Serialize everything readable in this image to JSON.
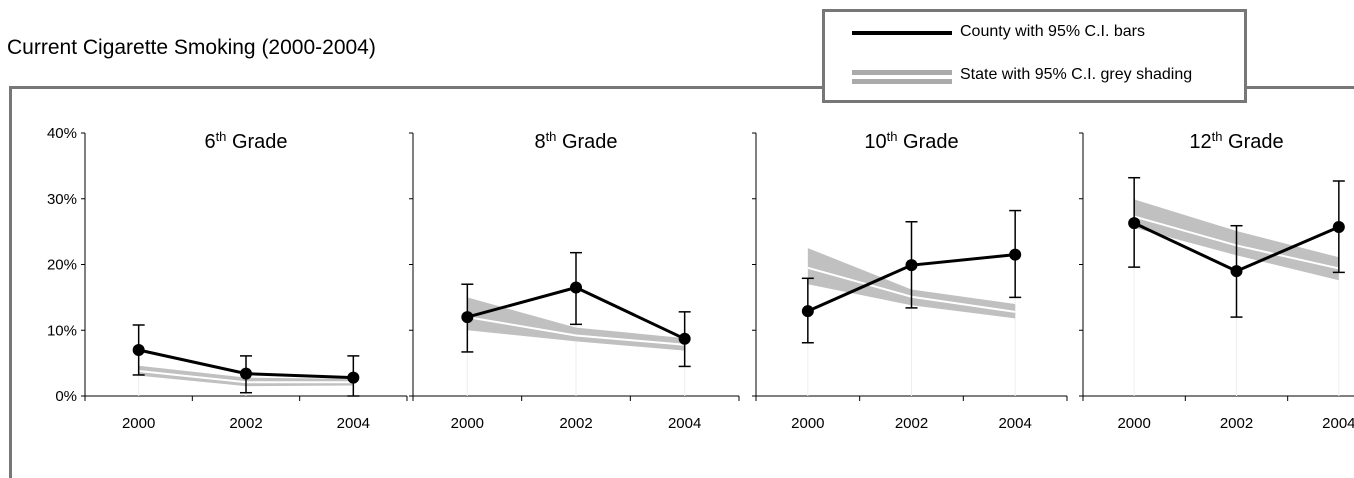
{
  "title": "Current Cigarette Smoking (2000-2004)",
  "legend": {
    "county_label": "County with 95% C.I. bars",
    "state_label": "State with 95% C.I. grey shading"
  },
  "colors": {
    "county": "#000000",
    "state_band": "#c0c0c0",
    "state_line": "#ffffff",
    "frame": "#777777"
  },
  "chart_data": [
    {
      "type": "line",
      "panel_title": {
        "number": "6",
        "suffix": "th",
        "text": " Grade"
      },
      "x": [
        "2000",
        "2002",
        "2004"
      ],
      "ylim": [
        0,
        40
      ],
      "yticks": [
        "0%",
        "10%",
        "20%",
        "30%",
        "40%"
      ],
      "series": [
        {
          "name": "County",
          "values": [
            7.0,
            3.4,
            2.8
          ],
          "ci_low": [
            3.2,
            0.5,
            0.0
          ],
          "ci_high": [
            10.8,
            6.1,
            6.1
          ]
        },
        {
          "name": "State",
          "values": [
            3.8,
            2.1,
            2.1
          ],
          "ci_low": [
            3.1,
            1.5,
            1.6
          ],
          "ci_high": [
            4.6,
            2.8,
            2.6
          ]
        }
      ]
    },
    {
      "type": "line",
      "panel_title": {
        "number": "8",
        "suffix": "th",
        "text": " Grade"
      },
      "x": [
        "2000",
        "2002",
        "2004"
      ],
      "ylim": [
        0,
        40
      ],
      "yticks": [],
      "series": [
        {
          "name": "County",
          "values": [
            12.0,
            16.5,
            8.7
          ],
          "ci_low": [
            6.7,
            10.9,
            4.5
          ],
          "ci_high": [
            17.0,
            21.8,
            12.8
          ]
        },
        {
          "name": "State",
          "values": [
            12.0,
            9.2,
            7.8
          ],
          "ci_low": [
            10.0,
            8.3,
            6.9
          ],
          "ci_high": [
            15.0,
            10.4,
            8.8
          ]
        }
      ]
    },
    {
      "type": "line",
      "panel_title": {
        "number": "10",
        "suffix": "th",
        "text": " Grade"
      },
      "x": [
        "2000",
        "2002",
        "2004"
      ],
      "ylim": [
        0,
        40
      ],
      "yticks": [],
      "series": [
        {
          "name": "County",
          "values": [
            12.9,
            19.9,
            21.5
          ],
          "ci_low": [
            8.1,
            13.4,
            15.0
          ],
          "ci_high": [
            17.9,
            26.5,
            28.2
          ]
        },
        {
          "name": "State",
          "values": [
            19.5,
            15.1,
            12.8
          ],
          "ci_low": [
            17.0,
            13.8,
            11.8
          ],
          "ci_high": [
            22.5,
            16.2,
            14.0
          ]
        }
      ]
    },
    {
      "type": "line",
      "panel_title": {
        "number": "12",
        "suffix": "th",
        "text": " Grade"
      },
      "x": [
        "2000",
        "2002",
        "2004"
      ],
      "ylim": [
        0,
        40
      ],
      "yticks": [],
      "series": [
        {
          "name": "County",
          "values": [
            26.3,
            19.0,
            25.7
          ],
          "ci_low": [
            19.6,
            12.0,
            18.8
          ],
          "ci_high": [
            33.2,
            25.9,
            32.7
          ]
        },
        {
          "name": "State",
          "values": [
            27.3,
            22.9,
            19.4
          ],
          "ci_low": [
            25.6,
            21.4,
            17.6
          ],
          "ci_high": [
            29.9,
            25.1,
            21.1
          ]
        }
      ]
    }
  ]
}
